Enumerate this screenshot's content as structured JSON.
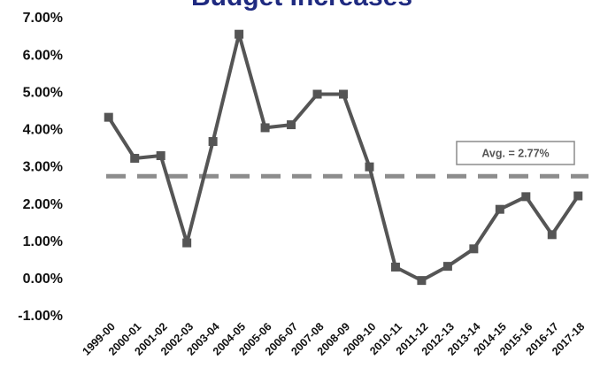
{
  "chart_data": {
    "type": "line",
    "title": "Budget Increases",
    "categories": [
      "1999-00",
      "2000-01",
      "2001-02",
      "2002-03",
      "2003-04",
      "2004-05",
      "2005-06",
      "2006-07",
      "2007-08",
      "2008-09",
      "2009-10",
      "2010-11",
      "2011-12",
      "2012-13",
      "2013-14",
      "2014-15",
      "2015-16",
      "2016-17",
      "2017-18"
    ],
    "series": [
      {
        "values": [
          4.35,
          3.25,
          3.32,
          0.98,
          3.7,
          6.58,
          4.07,
          4.15,
          4.97,
          4.97,
          3.02,
          0.33,
          -0.03,
          0.35,
          0.82,
          1.88,
          2.22,
          1.2,
          2.24
        ]
      }
    ],
    "y_tick_labels": [
      "7.00%",
      "6.00%",
      "5.00%",
      "4.00%",
      "3.00%",
      "2.00%",
      "1.00%",
      "0.00%",
      "-1.00%"
    ],
    "ylim": [
      -1,
      7
    ],
    "grid": false,
    "average": {
      "value": 2.77,
      "label": "Avg. = 2.77%"
    },
    "colors": {
      "line": "#555555",
      "average_line": "#8c8c8c",
      "title": "#1f2a80"
    }
  }
}
